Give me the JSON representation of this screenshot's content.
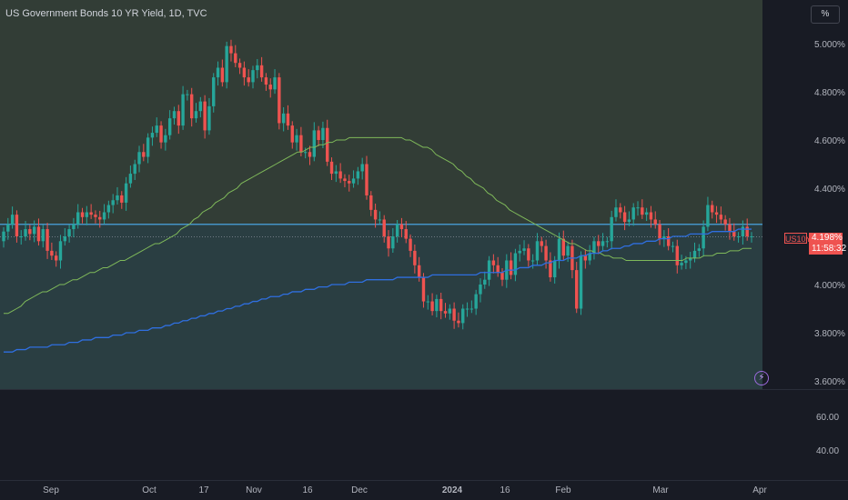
{
  "header": {
    "title": "US Government Bonds 10 YR Yield, 1D, TVC"
  },
  "scale_button": {
    "label": "%"
  },
  "price_tag": {
    "symbol": "US10Y",
    "price": "4.198%",
    "countdown": "11:58:32"
  },
  "colors": {
    "up": "#26a69a",
    "down": "#ef5350",
    "ma_fast": "#7fb95a",
    "ma_slow": "#2f6fe0",
    "level": "#4aa3df",
    "upper_zone": "#323d36",
    "lower_zone": "#2a3e42"
  },
  "icons": [
    "lightning-icon"
  ],
  "chart_data": [
    {
      "type": "candlestick",
      "title": "",
      "x_tick_labels": [
        "Sep",
        "Oct",
        "17",
        "Nov",
        "16",
        "Dec",
        "2024",
        "16",
        "Feb",
        "Mar",
        "Apr"
      ],
      "y_tick_labels": [
        "5.000%",
        "4.800%",
        "4.600%",
        "4.400%",
        "4.000%",
        "3.800%",
        "3.600%"
      ],
      "ylim": [
        3.6,
        5.05
      ],
      "grid": false,
      "close_series": [
        4.22,
        4.25,
        4.29,
        4.2,
        4.2,
        4.23,
        4.21,
        4.24,
        4.18,
        4.23,
        4.14,
        4.12,
        4.1,
        4.18,
        4.2,
        4.23,
        4.25,
        4.3,
        4.28,
        4.3,
        4.29,
        4.28,
        4.27,
        4.3,
        4.33,
        4.35,
        4.37,
        4.34,
        4.42,
        4.46,
        4.5,
        4.55,
        4.53,
        4.61,
        4.63,
        4.66,
        4.59,
        4.62,
        4.69,
        4.72,
        4.66,
        4.79,
        4.79,
        4.69,
        4.72,
        4.76,
        4.64,
        4.74,
        4.86,
        4.9,
        4.84,
        4.99,
        4.96,
        4.92,
        4.9,
        4.86,
        4.84,
        4.89,
        4.91,
        4.86,
        4.83,
        4.81,
        4.86,
        4.67,
        4.71,
        4.66,
        4.59,
        4.62,
        4.55,
        4.55,
        4.53,
        4.64,
        4.6,
        4.65,
        4.51,
        4.46,
        4.47,
        4.44,
        4.43,
        4.42,
        4.44,
        4.47,
        4.5,
        4.37,
        4.31,
        4.27,
        4.27,
        4.2,
        4.15,
        4.2,
        4.25,
        4.23,
        4.19,
        4.14,
        4.08,
        4.03,
        3.93,
        3.93,
        3.89,
        3.94,
        3.89,
        3.88,
        3.9,
        3.85,
        3.84,
        3.9,
        3.9,
        3.9,
        3.96,
        4.0,
        4.02,
        4.1,
        4.08,
        4.05,
        4.02,
        4.1,
        4.04,
        4.13,
        4.14,
        4.15,
        4.1,
        4.1,
        4.18,
        4.16,
        4.1,
        4.03,
        4.1,
        4.19,
        4.12,
        4.16,
        4.06,
        3.9,
        4.12,
        4.1,
        4.13,
        4.18,
        4.16,
        4.18,
        4.18,
        4.28,
        4.32,
        4.3,
        4.26,
        4.27,
        4.32,
        4.32,
        4.29,
        4.3,
        4.27,
        4.25,
        4.19,
        4.2,
        4.16,
        4.16,
        4.08,
        4.09,
        4.1,
        4.11,
        4.14,
        4.15,
        4.24,
        4.33,
        4.3,
        4.29,
        4.27,
        4.25,
        4.22,
        4.2,
        4.2,
        4.24,
        4.2,
        4.2
      ],
      "series": [
        {
          "name": "",
          "kind": "moving_average_fast",
          "values": [
            3.88,
            3.88,
            3.89,
            3.9,
            3.91,
            3.93,
            3.94,
            3.95,
            3.96,
            3.97,
            3.97,
            3.98,
            3.99,
            4.0,
            4.0,
            4.01,
            4.02,
            4.02,
            4.03,
            4.04,
            4.05,
            4.05,
            4.06,
            4.07,
            4.07,
            4.08,
            4.09,
            4.1,
            4.1,
            4.11,
            4.12,
            4.13,
            4.14,
            4.15,
            4.16,
            4.17,
            4.17,
            4.18,
            4.19,
            4.2,
            4.21,
            4.23,
            4.24,
            4.25,
            4.27,
            4.28,
            4.3,
            4.31,
            4.32,
            4.34,
            4.35,
            4.36,
            4.38,
            4.39,
            4.4,
            4.42,
            4.43,
            4.44,
            4.45,
            4.46,
            4.47,
            4.48,
            4.49,
            4.5,
            4.51,
            4.52,
            4.53,
            4.54,
            4.55,
            4.55,
            4.56,
            4.57,
            4.57,
            4.58,
            4.58,
            4.59,
            4.59,
            4.6,
            4.6,
            4.6,
            4.61,
            4.61,
            4.61,
            4.61,
            4.61,
            4.61,
            4.61,
            4.61,
            4.61,
            4.61,
            4.61,
            4.61,
            4.61,
            4.6,
            4.6,
            4.59,
            4.58,
            4.57,
            4.57,
            4.56,
            4.54,
            4.53,
            4.52,
            4.51,
            4.5,
            4.48,
            4.47,
            4.45,
            4.44,
            4.42,
            4.41,
            4.4,
            4.38,
            4.37,
            4.35,
            4.34,
            4.33,
            4.31,
            4.3,
            4.29,
            4.28,
            4.27,
            4.26,
            4.25,
            4.24,
            4.23,
            4.22,
            4.21,
            4.2,
            4.19,
            4.18,
            4.17,
            4.17,
            4.16,
            4.15,
            4.14,
            4.14,
            4.13,
            4.13,
            4.12,
            4.12,
            4.11,
            4.11,
            4.11,
            4.1,
            4.1,
            4.1,
            4.1,
            4.1,
            4.1,
            4.1,
            4.1,
            4.1,
            4.1,
            4.1,
            4.1,
            4.1,
            4.1,
            4.11,
            4.11,
            4.11,
            4.11,
            4.12,
            4.12,
            4.12,
            4.13,
            4.13,
            4.13,
            4.14,
            4.14,
            4.14,
            4.15,
            4.15,
            4.15
          ]
        },
        {
          "name": "",
          "kind": "moving_average_slow",
          "values": [
            3.72,
            3.72,
            3.72,
            3.73,
            3.73,
            3.73,
            3.74,
            3.74,
            3.74,
            3.74,
            3.74,
            3.75,
            3.75,
            3.75,
            3.75,
            3.76,
            3.76,
            3.76,
            3.77,
            3.77,
            3.77,
            3.78,
            3.78,
            3.78,
            3.78,
            3.79,
            3.79,
            3.79,
            3.8,
            3.8,
            3.8,
            3.81,
            3.81,
            3.81,
            3.82,
            3.82,
            3.82,
            3.83,
            3.83,
            3.84,
            3.84,
            3.85,
            3.85,
            3.86,
            3.86,
            3.87,
            3.87,
            3.88,
            3.88,
            3.89,
            3.89,
            3.9,
            3.9,
            3.91,
            3.91,
            3.92,
            3.92,
            3.93,
            3.93,
            3.94,
            3.94,
            3.95,
            3.95,
            3.95,
            3.96,
            3.96,
            3.97,
            3.97,
            3.97,
            3.98,
            3.98,
            3.98,
            3.99,
            3.99,
            3.99,
            4.0,
            4.0,
            4.0,
            4.0,
            4.01,
            4.01,
            4.01,
            4.01,
            4.02,
            4.02,
            4.02,
            4.02,
            4.02,
            4.02,
            4.02,
            4.03,
            4.03,
            4.03,
            4.03,
            4.03,
            4.03,
            4.03,
            4.03,
            4.04,
            4.04,
            4.04,
            4.04,
            4.04,
            4.04,
            4.04,
            4.04,
            4.04,
            4.04,
            4.04,
            4.05,
            4.05,
            4.05,
            4.05,
            4.05,
            4.05,
            4.06,
            4.06,
            4.06,
            4.07,
            4.07,
            4.07,
            4.08,
            4.08,
            4.08,
            4.09,
            4.09,
            4.1,
            4.1,
            4.1,
            4.11,
            4.11,
            4.11,
            4.12,
            4.12,
            4.13,
            4.13,
            4.13,
            4.14,
            4.14,
            4.15,
            4.15,
            4.15,
            4.16,
            4.16,
            4.17,
            4.17,
            4.17,
            4.18,
            4.18,
            4.18,
            4.19,
            4.19,
            4.19,
            4.2,
            4.2,
            4.2,
            4.2,
            4.21,
            4.21,
            4.21,
            4.21,
            4.21,
            4.22,
            4.22,
            4.22,
            4.22,
            4.22,
            4.22,
            4.23,
            4.23,
            4.23,
            4.23
          ]
        }
      ],
      "horizontal_levels": [
        4.25,
        4.198
      ],
      "zone_divider": 4.25
    },
    {
      "type": "line",
      "title": "",
      "y_tick_labels": [
        "60.00",
        "40.00"
      ],
      "ylim": [
        25,
        75
      ],
      "series": []
    }
  ]
}
